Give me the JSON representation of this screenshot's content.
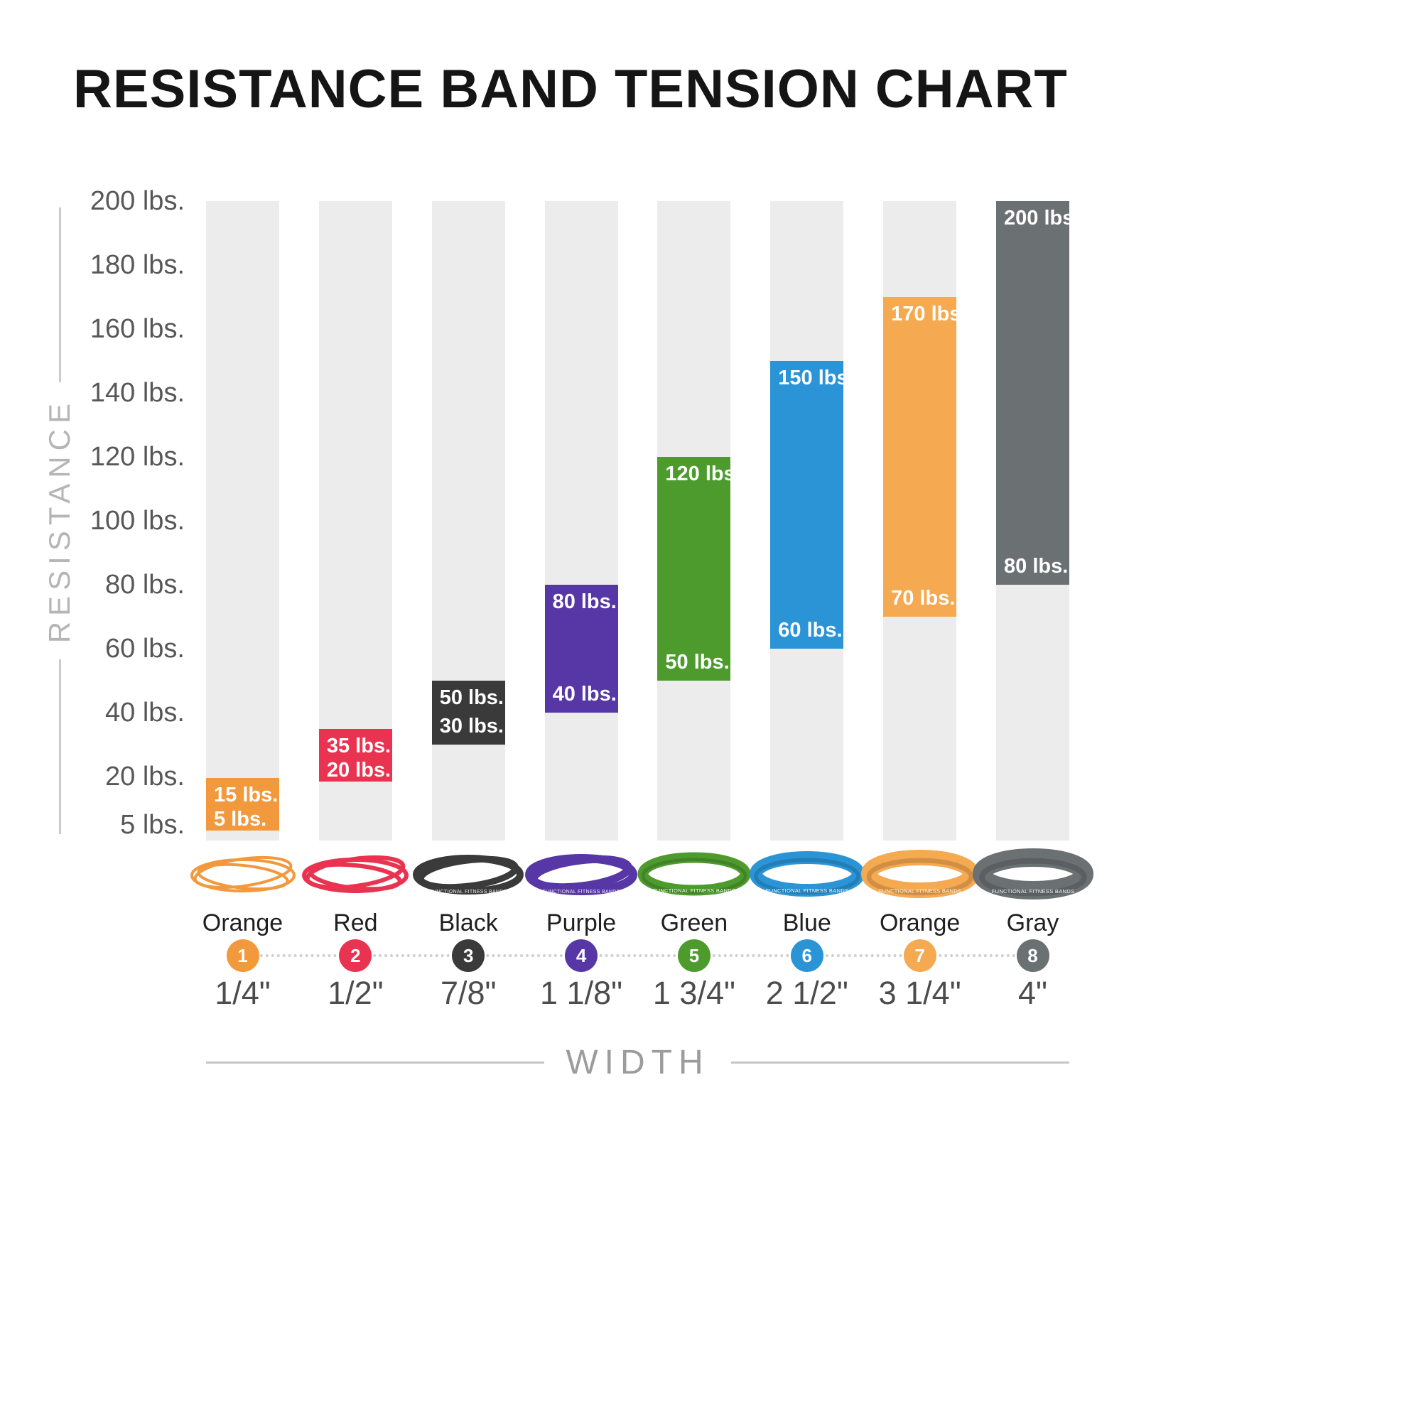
{
  "title": "RESISTANCE BAND TENSION CHART",
  "y_axis_label": "RESISTANCE",
  "x_axis_label": "WIDTH",
  "bands_brand_text": "FUNCTIONAL FITNESS BANDS",
  "chart_data": {
    "type": "bar",
    "subtype": "floating-range-columns",
    "title": "RESISTANCE BAND TENSION CHART",
    "ylabel": "RESISTANCE",
    "xlabel": "WIDTH",
    "ylim": [
      0,
      200
    ],
    "grid": false,
    "y_ticks": [
      {
        "value": 200,
        "label": "200 lbs."
      },
      {
        "value": 180,
        "label": "180 lbs."
      },
      {
        "value": 160,
        "label": "160 lbs."
      },
      {
        "value": 140,
        "label": "140 lbs."
      },
      {
        "value": 120,
        "label": "120 lbs."
      },
      {
        "value": 100,
        "label": "100 lbs."
      },
      {
        "value": 80,
        "label": "80 lbs."
      },
      {
        "value": 60,
        "label": "60 lbs."
      },
      {
        "value": 40,
        "label": "40 lbs."
      },
      {
        "value": 20,
        "label": "20 lbs."
      },
      {
        "value": 5,
        "label": "5 lbs."
      }
    ],
    "bands": [
      {
        "number": "1",
        "color_name": "Orange",
        "color": "#F2993D",
        "width_label": "1/4\"",
        "min_lbs": 5,
        "max_lbs": 15,
        "min_label": "5 lbs.",
        "max_label": "15 lbs."
      },
      {
        "number": "2",
        "color_name": "Red",
        "color": "#E93350",
        "width_label": "1/2\"",
        "min_lbs": 20,
        "max_lbs": 35,
        "min_label": "20 lbs.",
        "max_label": "35 lbs."
      },
      {
        "number": "3",
        "color_name": "Black",
        "color": "#3A3A3A",
        "width_label": "7/8\"",
        "min_lbs": 30,
        "max_lbs": 50,
        "min_label": "30 lbs.",
        "max_label": "50 lbs."
      },
      {
        "number": "4",
        "color_name": "Purple",
        "color": "#5637A5",
        "width_label": "1 1/8\"",
        "min_lbs": 40,
        "max_lbs": 80,
        "min_label": "40 lbs.",
        "max_label": "80 lbs."
      },
      {
        "number": "5",
        "color_name": "Green",
        "color": "#4D9B2D",
        "width_label": "1 3/4\"",
        "min_lbs": 50,
        "max_lbs": 120,
        "min_label": "50 lbs.",
        "max_label": "120 lbs."
      },
      {
        "number": "6",
        "color_name": "Blue",
        "color": "#2B94D6",
        "width_label": "2 1/2\"",
        "min_lbs": 60,
        "max_lbs": 150,
        "min_label": "60 lbs.",
        "max_label": "150 lbs."
      },
      {
        "number": "7",
        "color_name": "Orange",
        "color": "#F5A950",
        "width_label": "3 1/4\"",
        "min_lbs": 70,
        "max_lbs": 170,
        "min_label": "70 lbs.",
        "max_label": "170 lbs."
      },
      {
        "number": "8",
        "color_name": "Gray",
        "color": "#6B7073",
        "width_label": "4\"",
        "min_lbs": 80,
        "max_lbs": 200,
        "min_label": "80 lbs.",
        "max_label": "200 lbs."
      }
    ]
  },
  "colors": {
    "background": "#FFFFFF",
    "column_background": "#ECECEC",
    "title_text": "#151515",
    "tick_text": "#575757",
    "axis_label_text": "#B5B5B5",
    "band_name_text": "#1F1F1F",
    "width_text": "#4C4C4C",
    "bar_label_text": "#FFFFFF",
    "connector_dots": "#CFCFCF"
  }
}
